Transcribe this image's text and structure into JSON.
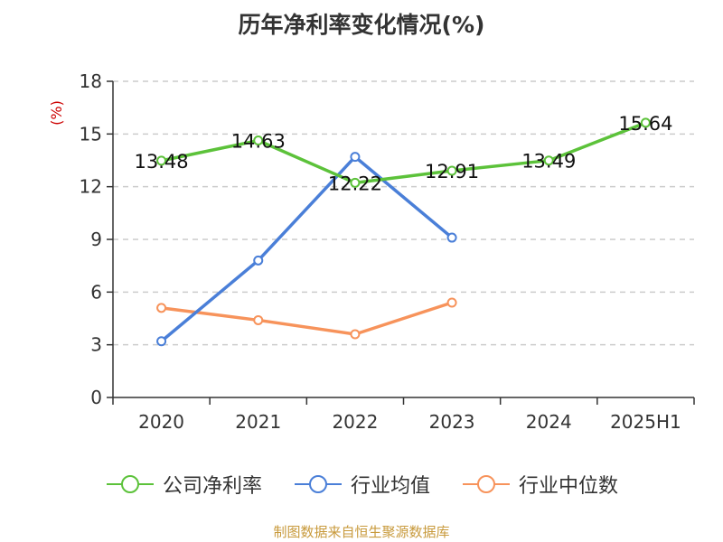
{
  "chart_data": {
    "type": "line",
    "title": "历年净利率变化情况(%)",
    "ylabel": "(%)",
    "xlabel": "",
    "categories": [
      "2020",
      "2021",
      "2022",
      "2023",
      "2024",
      "2025H1"
    ],
    "ylim": [
      0,
      18
    ],
    "yticks": [
      0,
      3,
      6,
      9,
      12,
      15,
      18
    ],
    "grid": true,
    "legend_position": "bottom",
    "series": [
      {
        "name": "公司净利率",
        "color": "#5cc23a",
        "values": [
          13.48,
          14.63,
          12.22,
          12.91,
          13.49,
          15.64
        ],
        "labels": [
          "13.48",
          "14.63",
          "12.22",
          "12.91",
          "13.49",
          "15.64"
        ]
      },
      {
        "name": "行业均值",
        "color": "#4a7fd8",
        "values": [
          3.2,
          7.8,
          13.7,
          9.1,
          null,
          null
        ],
        "labels": null
      },
      {
        "name": "行业中位数",
        "color": "#f7935b",
        "values": [
          5.1,
          4.4,
          3.6,
          5.4,
          null,
          null
        ],
        "labels": null
      }
    ]
  },
  "source_note": "制图数据来自恒生聚源数据库"
}
